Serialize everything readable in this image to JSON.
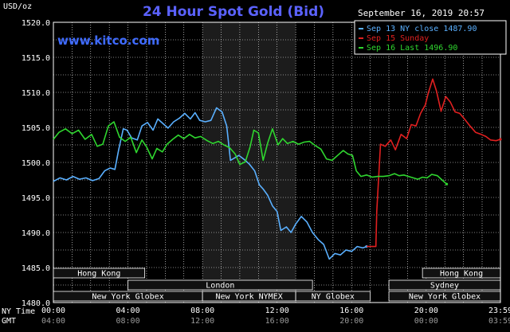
{
  "header": {
    "unit": "USD/oz",
    "title": "24 Hour Spot Gold (Bid)",
    "datetime": "September 16, 2019 20:57",
    "website": "www.kitco.com"
  },
  "colors": {
    "background": "#000000",
    "plot_background": "#000000",
    "grid": "#ffffff",
    "title": "#5b62ff",
    "website": "#3f6bff",
    "blue": "#5ab0ff",
    "red": "#e02020",
    "green": "#2fd62f",
    "session_fill": "#111111",
    "session_stroke": "#ffffff"
  },
  "legend": [
    {
      "label": "Sep 13 NY close 1487.90",
      "color": "#5ab0ff"
    },
    {
      "label": "Sep 15 Sunday",
      "color": "#e02020"
    },
    {
      "label": "Sep 16 Last 1496.90",
      "color": "#2fd62f"
    }
  ],
  "time_axis": {
    "row1_label": "NY Time",
    "row2_label": "GMT",
    "row1_ticks": [
      "00:00",
      "04:00",
      "08:00",
      "12:00",
      "16:00",
      "20:00",
      "23:59"
    ],
    "row2_ticks": [
      "04:00",
      "08:00",
      "12:00",
      "16:00",
      "20:00",
      "00:00",
      "03:59"
    ]
  },
  "sessions": [
    {
      "label": "Hong Kong",
      "row": 0,
      "start": 0.0,
      "end": 4.9
    },
    {
      "label": "London",
      "row": 1,
      "start": 4.0,
      "end": 13.9
    },
    {
      "label": "New York Globex",
      "row": 2,
      "start": 0.0,
      "end": 8.0
    },
    {
      "label": "New York NYMEX",
      "row": 2,
      "start": 8.0,
      "end": 13.0
    },
    {
      "label": "NY Globex",
      "row": 2,
      "start": 13.0,
      "end": 17.0
    },
    {
      "label": "Hong Kong",
      "row": 0,
      "start": 19.8,
      "end": 23.98
    },
    {
      "label": "Sydney",
      "row": 1,
      "start": 18.0,
      "end": 23.98
    },
    {
      "label": "New York Globex",
      "row": 2,
      "start": 18.0,
      "end": 23.98
    }
  ],
  "chart_data": {
    "type": "line",
    "title": "24 Hour Spot Gold (Bid)",
    "ylabel": "USD/oz",
    "ylim": [
      1480.0,
      1520.0
    ],
    "yticks": [
      "1480.0",
      "1485.0",
      "1490.0",
      "1495.0",
      "1500.0",
      "1505.0",
      "1510.0",
      "1515.0",
      "1520.0"
    ],
    "xlim": [
      0,
      23.983
    ],
    "x_unit": "hours (NY time)",
    "grid": true,
    "legend_position": "top-right",
    "shaded_period": [
      8.0,
      13.0
    ],
    "series": [
      {
        "name": "Sep 13 NY close 1487.90",
        "color": "#5ab0ff",
        "points": [
          [
            0,
            1497.3
          ],
          [
            0.35,
            1497.8
          ],
          [
            0.7,
            1497.5
          ],
          [
            1.05,
            1498.0
          ],
          [
            1.4,
            1497.6
          ],
          [
            1.75,
            1497.8
          ],
          [
            2.1,
            1497.4
          ],
          [
            2.45,
            1497.7
          ],
          [
            2.75,
            1498.8
          ],
          [
            3.05,
            1499.2
          ],
          [
            3.3,
            1499.0
          ],
          [
            3.5,
            1501.8
          ],
          [
            3.75,
            1504.8
          ],
          [
            3.95,
            1504.6
          ],
          [
            4.2,
            1503.5
          ],
          [
            4.5,
            1503.2
          ],
          [
            4.75,
            1505.2
          ],
          [
            5.05,
            1505.7
          ],
          [
            5.35,
            1504.6
          ],
          [
            5.6,
            1506.2
          ],
          [
            5.9,
            1505.5
          ],
          [
            6.15,
            1504.9
          ],
          [
            6.45,
            1505.8
          ],
          [
            6.75,
            1506.3
          ],
          [
            7.05,
            1507.0
          ],
          [
            7.35,
            1506.2
          ],
          [
            7.6,
            1507.1
          ],
          [
            7.85,
            1506.0
          ],
          [
            8.15,
            1505.8
          ],
          [
            8.45,
            1506.0
          ],
          [
            8.75,
            1507.8
          ],
          [
            9.05,
            1507.2
          ],
          [
            9.3,
            1505.2
          ],
          [
            9.5,
            1500.3
          ],
          [
            9.7,
            1500.6
          ],
          [
            9.95,
            1501.0
          ],
          [
            10.2,
            1500.5
          ],
          [
            10.5,
            1499.8
          ],
          [
            10.8,
            1498.8
          ],
          [
            11.05,
            1496.8
          ],
          [
            11.25,
            1496.2
          ],
          [
            11.5,
            1495.3
          ],
          [
            11.75,
            1493.8
          ],
          [
            12.0,
            1493.0
          ],
          [
            12.2,
            1490.3
          ],
          [
            12.5,
            1490.8
          ],
          [
            12.75,
            1490.0
          ],
          [
            13.0,
            1491.2
          ],
          [
            13.3,
            1492.3
          ],
          [
            13.6,
            1491.5
          ],
          [
            13.9,
            1490.0
          ],
          [
            14.2,
            1489.0
          ],
          [
            14.5,
            1488.3
          ],
          [
            14.8,
            1486.2
          ],
          [
            15.1,
            1487.0
          ],
          [
            15.4,
            1486.8
          ],
          [
            15.7,
            1487.5
          ],
          [
            16.0,
            1487.3
          ],
          [
            16.3,
            1488.0
          ],
          [
            16.6,
            1487.8
          ],
          [
            16.8,
            1488.0
          ]
        ]
      },
      {
        "name": "Sep 15 Sunday",
        "color": "#e02020",
        "points": [
          [
            16.8,
            1488.0
          ],
          [
            17.3,
            1488.0
          ],
          [
            17.35,
            1493.0
          ],
          [
            17.55,
            1502.6
          ],
          [
            17.8,
            1502.3
          ],
          [
            18.1,
            1503.2
          ],
          [
            18.35,
            1501.8
          ],
          [
            18.65,
            1504.0
          ],
          [
            18.95,
            1503.4
          ],
          [
            19.2,
            1505.4
          ],
          [
            19.45,
            1505.2
          ],
          [
            19.7,
            1507.0
          ],
          [
            19.95,
            1508.2
          ],
          [
            20.1,
            1509.8
          ],
          [
            20.35,
            1511.9
          ],
          [
            20.55,
            1510.2
          ],
          [
            20.8,
            1507.3
          ],
          [
            21.05,
            1509.4
          ],
          [
            21.3,
            1508.6
          ],
          [
            21.55,
            1507.2
          ],
          [
            21.8,
            1507.0
          ],
          [
            22.05,
            1506.2
          ],
          [
            22.35,
            1505.2
          ],
          [
            22.65,
            1504.3
          ],
          [
            22.95,
            1504.0
          ],
          [
            23.2,
            1503.7
          ],
          [
            23.45,
            1503.2
          ],
          [
            23.75,
            1503.1
          ],
          [
            23.98,
            1503.3
          ]
        ]
      },
      {
        "name": "Sep 16 Last 1496.90",
        "color": "#2fd62f",
        "points": [
          [
            0,
            1503.3
          ],
          [
            0.3,
            1504.3
          ],
          [
            0.65,
            1504.8
          ],
          [
            1.0,
            1504.1
          ],
          [
            1.35,
            1504.6
          ],
          [
            1.7,
            1503.3
          ],
          [
            2.05,
            1504.0
          ],
          [
            2.35,
            1502.3
          ],
          [
            2.65,
            1502.6
          ],
          [
            2.95,
            1505.2
          ],
          [
            3.25,
            1505.8
          ],
          [
            3.55,
            1503.6
          ],
          [
            3.85,
            1503.0
          ],
          [
            4.15,
            1503.6
          ],
          [
            4.45,
            1501.4
          ],
          [
            4.75,
            1503.2
          ],
          [
            5.0,
            1502.2
          ],
          [
            5.3,
            1500.5
          ],
          [
            5.55,
            1502.0
          ],
          [
            5.85,
            1501.5
          ],
          [
            6.1,
            1502.6
          ],
          [
            6.4,
            1503.3
          ],
          [
            6.7,
            1503.9
          ],
          [
            7.0,
            1503.4
          ],
          [
            7.3,
            1504.0
          ],
          [
            7.6,
            1503.5
          ],
          [
            7.9,
            1503.7
          ],
          [
            8.25,
            1503.1
          ],
          [
            8.55,
            1502.7
          ],
          [
            8.85,
            1503.0
          ],
          [
            9.15,
            1502.5
          ],
          [
            9.45,
            1502.1
          ],
          [
            9.75,
            1501.2
          ],
          [
            10.0,
            1499.7
          ],
          [
            10.3,
            1500.1
          ],
          [
            10.55,
            1502.2
          ],
          [
            10.75,
            1504.6
          ],
          [
            11.0,
            1504.2
          ],
          [
            11.25,
            1500.3
          ],
          [
            11.5,
            1502.8
          ],
          [
            11.75,
            1504.8
          ],
          [
            12.05,
            1502.5
          ],
          [
            12.3,
            1503.4
          ],
          [
            12.55,
            1502.7
          ],
          [
            12.85,
            1503.0
          ],
          [
            13.15,
            1502.6
          ],
          [
            13.45,
            1502.9
          ],
          [
            13.75,
            1503.0
          ],
          [
            14.05,
            1502.4
          ],
          [
            14.35,
            1501.9
          ],
          [
            14.65,
            1500.5
          ],
          [
            14.95,
            1500.3
          ],
          [
            15.25,
            1501.0
          ],
          [
            15.55,
            1501.7
          ],
          [
            15.8,
            1501.2
          ],
          [
            16.05,
            1501.0
          ],
          [
            16.25,
            1498.8
          ],
          [
            16.5,
            1498.0
          ],
          [
            16.8,
            1498.2
          ],
          [
            17.1,
            1497.9
          ],
          [
            17.4,
            1498.0
          ],
          [
            17.7,
            1498.0
          ],
          [
            18.0,
            1498.1
          ],
          [
            18.3,
            1498.4
          ],
          [
            18.55,
            1498.1
          ],
          [
            18.8,
            1498.2
          ],
          [
            19.05,
            1498.0
          ],
          [
            19.3,
            1497.8
          ],
          [
            19.55,
            1497.6
          ],
          [
            19.8,
            1497.9
          ],
          [
            20.05,
            1497.8
          ],
          [
            20.3,
            1498.3
          ],
          [
            20.6,
            1498.1
          ],
          [
            20.85,
            1497.5
          ],
          [
            21.1,
            1496.9
          ]
        ]
      }
    ]
  }
}
